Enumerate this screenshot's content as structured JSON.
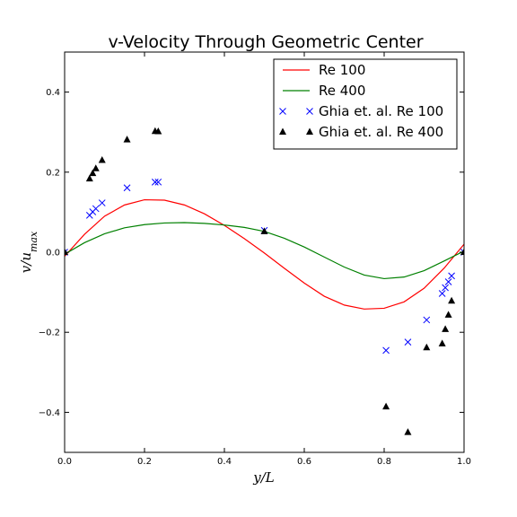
{
  "chart_data": {
    "type": "line",
    "title": "v-Velocity Through Geometric Center",
    "xlabel": "y/L",
    "ylabel": "v/u_max",
    "xlim": [
      0.0,
      1.0
    ],
    "ylim": [
      -0.5,
      0.5
    ],
    "xticks": [
      0.0,
      0.2,
      0.4,
      0.6,
      0.8,
      1.0
    ],
    "xtick_labels": [
      "0.0",
      "0.2",
      "0.4",
      "0.6",
      "0.8",
      "1.0"
    ],
    "yticks": [
      -0.4,
      -0.2,
      0.0,
      0.2,
      0.4
    ],
    "ytick_labels": [
      "−0.4",
      "−0.2",
      "0.0",
      "0.2",
      "0.4"
    ],
    "grid": false,
    "legend_position": "top-right",
    "series": [
      {
        "name": "Re 100",
        "kind": "line",
        "color": "#ff0000",
        "x": [
          0.0,
          0.05,
          0.1,
          0.15,
          0.2,
          0.25,
          0.3,
          0.35,
          0.4,
          0.45,
          0.5,
          0.55,
          0.6,
          0.65,
          0.7,
          0.75,
          0.8,
          0.85,
          0.9,
          0.95,
          1.0
        ],
        "y": [
          -0.01,
          0.045,
          0.09,
          0.118,
          0.131,
          0.13,
          0.118,
          0.096,
          0.067,
          0.034,
          -0.002,
          -0.04,
          -0.077,
          -0.11,
          -0.132,
          -0.142,
          -0.14,
          -0.124,
          -0.09,
          -0.04,
          0.02
        ]
      },
      {
        "name": "Re 400",
        "kind": "line",
        "color": "#008000",
        "x": [
          0.0,
          0.05,
          0.1,
          0.15,
          0.2,
          0.25,
          0.3,
          0.35,
          0.4,
          0.45,
          0.5,
          0.55,
          0.6,
          0.65,
          0.7,
          0.75,
          0.8,
          0.85,
          0.9,
          0.95,
          1.0
        ],
        "y": [
          -0.005,
          0.024,
          0.046,
          0.061,
          0.069,
          0.073,
          0.074,
          0.072,
          0.068,
          0.062,
          0.052,
          0.035,
          0.013,
          -0.012,
          -0.037,
          -0.057,
          -0.066,
          -0.062,
          -0.046,
          -0.022,
          0.003
        ]
      },
      {
        "name": "Ghia et. al. Re 100",
        "kind": "scatter",
        "marker": "x",
        "color": "#0000ff",
        "x": [
          0.0,
          0.0625,
          0.0703,
          0.0781,
          0.0938,
          0.1563,
          0.2266,
          0.2344,
          0.5,
          0.8047,
          0.8594,
          0.9063,
          0.9453,
          0.9531,
          0.9609,
          0.9688,
          1.0
        ],
        "y": [
          0.0,
          0.0923,
          0.1009,
          0.1089,
          0.1232,
          0.1608,
          0.1751,
          0.1753,
          0.0545,
          -0.2453,
          -0.2245,
          -0.1691,
          -0.1031,
          -0.0886,
          -0.0739,
          -0.0591,
          0.0
        ]
      },
      {
        "name": "Ghia et. al. Re 400",
        "kind": "scatter",
        "marker": "triangle",
        "color": "#000000",
        "x": [
          0.0,
          0.0625,
          0.0703,
          0.0781,
          0.0938,
          0.1563,
          0.2266,
          0.2344,
          0.5,
          0.8047,
          0.8594,
          0.9063,
          0.9453,
          0.9531,
          0.9609,
          0.9688,
          1.0
        ],
        "y": [
          0.0,
          0.1836,
          0.1971,
          0.2092,
          0.2297,
          0.2812,
          0.302,
          0.3017,
          0.0519,
          -0.386,
          -0.4499,
          -0.2383,
          -0.2285,
          -0.1925,
          -0.1566,
          -0.1215,
          0.0
        ]
      }
    ]
  }
}
